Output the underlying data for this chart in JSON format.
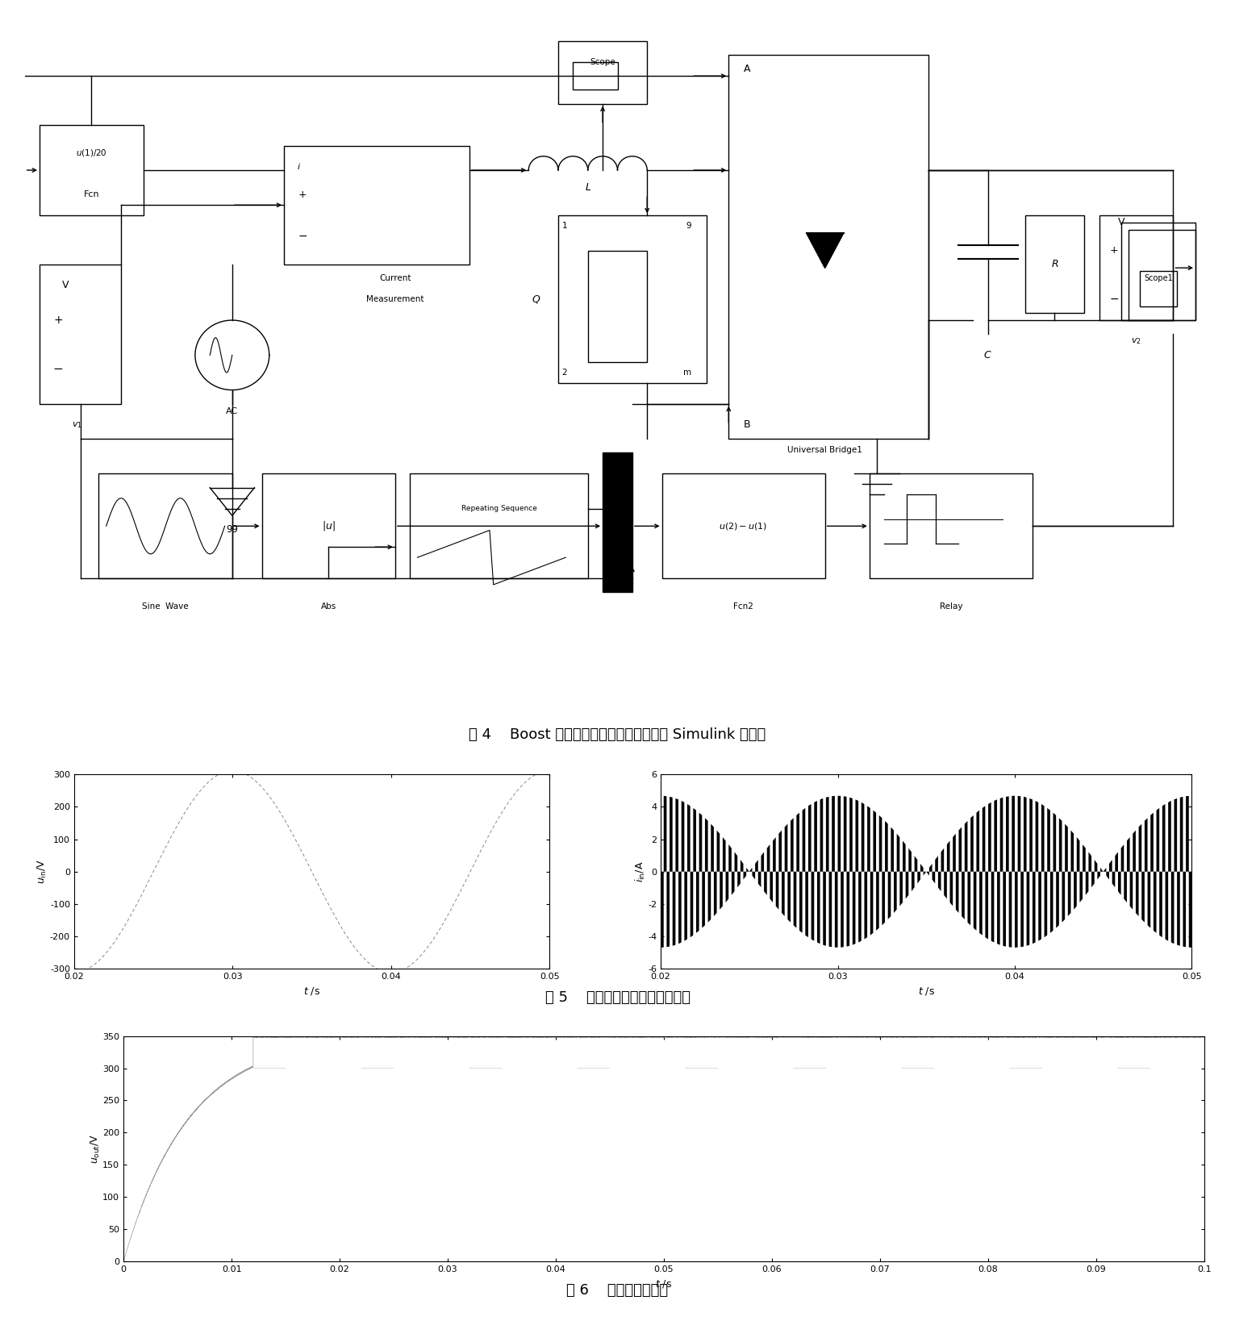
{
  "fig_width": 15.31,
  "fig_height": 16.64,
  "bg_color": "#ffffff",
  "caption4": "图 4    Boost 型交流斩波功率因数校正电路 Simulink 模型图",
  "caption5": "图 5    输入电压和输入电流的波形",
  "caption6": "图 6    输出电压的波形",
  "plot5_left": {
    "ylabel": "$u_{\\mathrm{in}}$/V",
    "xlabel": "$t$ /s",
    "xlim": [
      0.02,
      0.05
    ],
    "ylim": [
      -300,
      300
    ],
    "yticks": [
      -300,
      -200,
      -100,
      0,
      100,
      200,
      300
    ],
    "xticks": [
      0.02,
      0.03,
      0.04,
      0.05
    ],
    "xtick_labels": [
      "0.02",
      "0.03",
      "0.04",
      "0.05"
    ]
  },
  "plot5_right": {
    "ylabel": "$i_{\\mathrm{in}}$/A",
    "xlabel": "$t$ /s",
    "xlim": [
      0.02,
      0.05
    ],
    "ylim": [
      -6,
      6
    ],
    "yticks": [
      -6,
      -4,
      -2,
      0,
      2,
      4,
      6
    ],
    "xticks": [
      0.02,
      0.03,
      0.04,
      0.05
    ],
    "xtick_labels": [
      "0.02",
      "0.03",
      "0.04",
      "0.05"
    ]
  },
  "plot6": {
    "ylabel": "$u_{\\mathrm{out}}$/V",
    "xlabel": "$t$ /s",
    "xlim": [
      0,
      0.1
    ],
    "ylim": [
      0,
      350
    ],
    "yticks": [
      0,
      50,
      100,
      150,
      200,
      250,
      300,
      350
    ],
    "xticks": [
      0,
      0.01,
      0.02,
      0.03,
      0.04,
      0.05,
      0.06,
      0.07,
      0.08,
      0.09,
      0.1
    ],
    "xtick_labels": [
      "0",
      "0.01",
      "0.02",
      "0.03",
      "0.04",
      "0.05",
      "0.06",
      "0.07",
      "0.08",
      "0.09",
      "0.1"
    ]
  }
}
